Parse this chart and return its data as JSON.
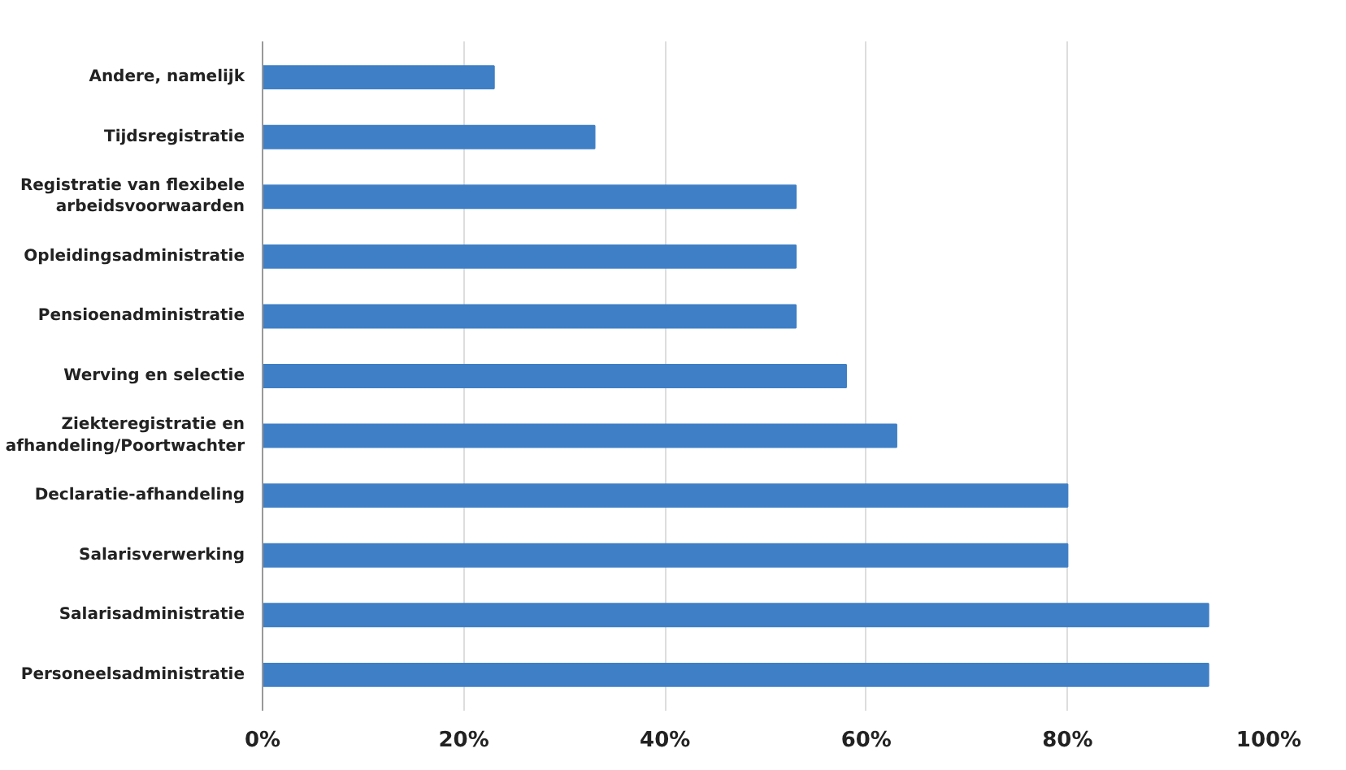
{
  "chart_data": {
    "type": "bar",
    "orientation": "horizontal",
    "categories": [
      "Andere, namelijk",
      "Tijdsregistratie",
      "Registratie van flexibele arbeidsvoorwaarden",
      "Opleidingsadministratie",
      "Pensioenadministratie",
      "Werving en selectie",
      "Ziekteregistratie en afhandeling/Poortwachter",
      "Declaratie-afhandeling",
      "Salarisverwerking",
      "Salarisadministratie",
      "Personeelsadministratie"
    ],
    "values": [
      23,
      33,
      53,
      53,
      53,
      58,
      63,
      80,
      80,
      94,
      94
    ],
    "color": "#3f7fc6",
    "xlim": [
      0,
      100
    ],
    "xticks": [
      {
        "value": 0,
        "label": "0%"
      },
      {
        "value": 20,
        "label": "20%"
      },
      {
        "value": 40,
        "label": "40%"
      },
      {
        "value": 60,
        "label": "60%"
      },
      {
        "value": 80,
        "label": "80%"
      },
      {
        "value": 100,
        "label": "100%"
      }
    ],
    "grid": "x"
  }
}
